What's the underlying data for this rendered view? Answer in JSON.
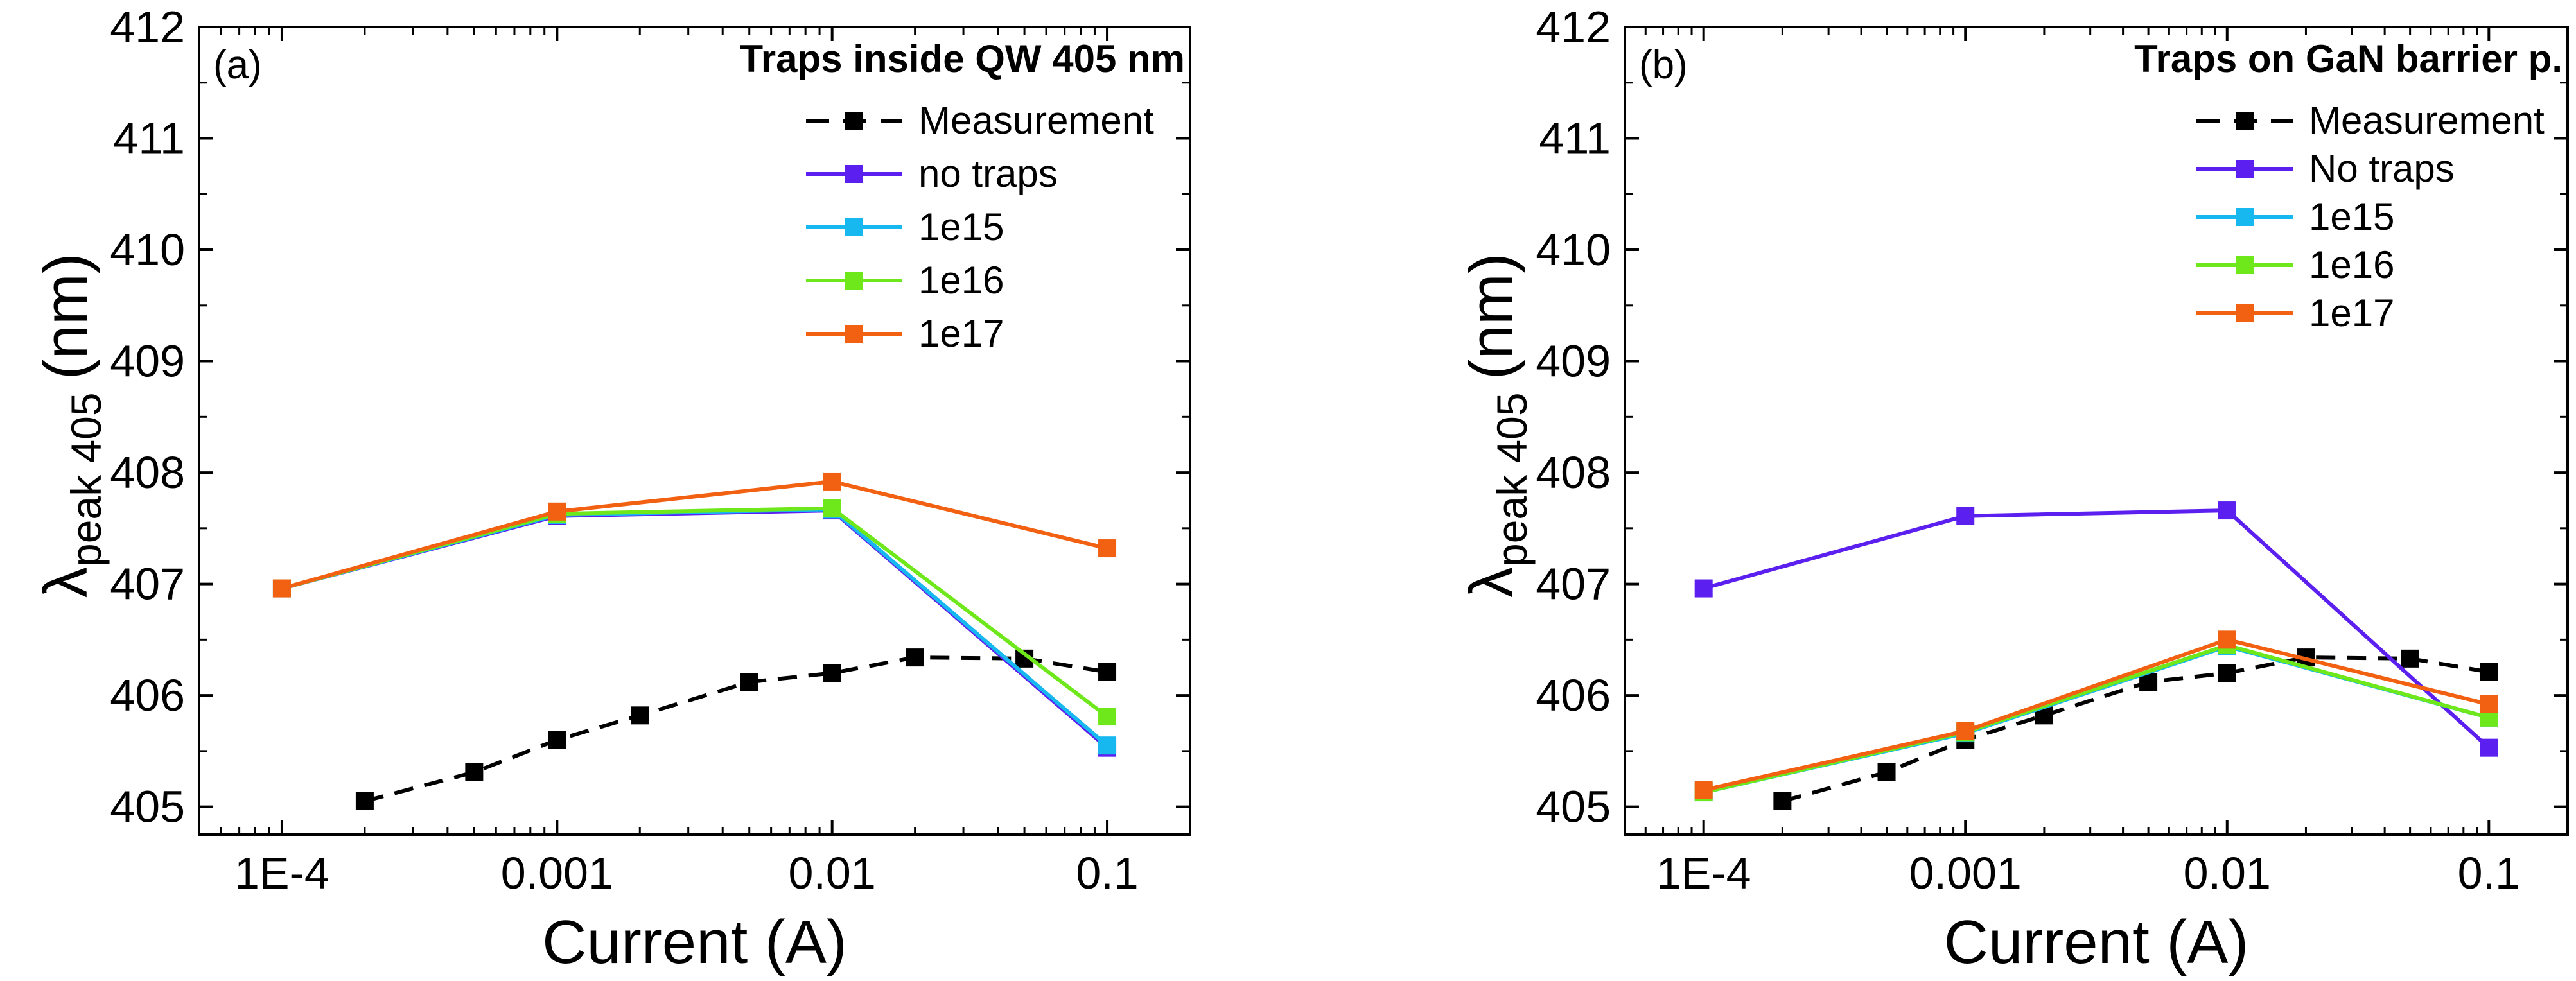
{
  "chart_data": [
    {
      "type": "line",
      "panel_label": "(a)",
      "legend_title": "Traps inside QW 405 nm",
      "xlabel": "Current (A)",
      "ylabel_main": "λ",
      "ylabel_sub": "peak 405",
      "ylabel_unit": "(nm)",
      "xscale": "log",
      "xlim": [
        5e-05,
        0.2
      ],
      "ylim": [
        404.75,
        412
      ],
      "xticks": [
        0.0001,
        0.001,
        0.01,
        0.1
      ],
      "xtick_labels": [
        "1E-4",
        "0.001",
        "0.01",
        "0.1"
      ],
      "yticks": [
        405,
        406,
        407,
        408,
        409,
        410,
        411,
        412
      ],
      "ytick_labels": [
        "405",
        "406",
        "407",
        "408",
        "409",
        "410",
        "411",
        "412"
      ],
      "legend_position": "top-right",
      "series": [
        {
          "name": "Measurement",
          "color": "#000000",
          "dashed": true,
          "x": [
            0.0002,
            0.0005,
            0.001,
            0.002,
            0.005,
            0.01,
            0.02,
            0.05,
            0.1
          ],
          "y": [
            405.05,
            405.31,
            405.6,
            405.82,
            406.12,
            406.2,
            406.34,
            406.33,
            406.21
          ]
        },
        {
          "name": "no traps",
          "color": "#5b1ff0",
          "dashed": false,
          "x": [
            0.0001,
            0.001,
            0.01,
            0.1
          ],
          "y": [
            406.96,
            407.61,
            407.66,
            405.53
          ]
        },
        {
          "name": "1e15",
          "color": "#17b8ef",
          "dashed": false,
          "x": [
            0.0001,
            0.001,
            0.01,
            0.1
          ],
          "y": [
            406.96,
            407.62,
            407.67,
            405.55
          ]
        },
        {
          "name": "1e16",
          "color": "#6ee81a",
          "dashed": false,
          "x": [
            0.0001,
            0.001,
            0.01,
            0.1
          ],
          "y": [
            406.96,
            407.63,
            407.68,
            405.81
          ]
        },
        {
          "name": "1e17",
          "color": "#f26011",
          "dashed": false,
          "x": [
            0.0001,
            0.001,
            0.01,
            0.1
          ],
          "y": [
            406.96,
            407.65,
            407.92,
            407.32
          ]
        }
      ]
    },
    {
      "type": "line",
      "panel_label": "(b)",
      "legend_title": "Traps on GaN barrier p.",
      "xlabel": "Current (A)",
      "ylabel_main": "λ",
      "ylabel_sub": "peak 405",
      "ylabel_unit": "(nm)",
      "xscale": "log",
      "xlim": [
        5e-05,
        0.2
      ],
      "ylim": [
        404.75,
        412
      ],
      "xticks": [
        0.0001,
        0.001,
        0.01,
        0.1
      ],
      "xtick_labels": [
        "1E-4",
        "0.001",
        "0.01",
        "0.1"
      ],
      "yticks": [
        405,
        406,
        407,
        408,
        409,
        410,
        411,
        412
      ],
      "ytick_labels": [
        "405",
        "406",
        "407",
        "408",
        "409",
        "410",
        "411",
        "412"
      ],
      "legend_position": "top-right",
      "series": [
        {
          "name": "Measurement",
          "color": "#000000",
          "dashed": true,
          "x": [
            0.0002,
            0.0005,
            0.001,
            0.002,
            0.005,
            0.01,
            0.02,
            0.05,
            0.1
          ],
          "y": [
            405.05,
            405.31,
            405.6,
            405.82,
            406.12,
            406.2,
            406.34,
            406.33,
            406.21
          ]
        },
        {
          "name": "No traps",
          "color": "#5b1ff0",
          "dashed": false,
          "x": [
            0.0001,
            0.001,
            0.01,
            0.1
          ],
          "y": [
            406.96,
            407.61,
            407.66,
            405.53
          ]
        },
        {
          "name": "1e15",
          "color": "#17b8ef",
          "dashed": false,
          "x": [
            0.0001,
            0.001,
            0.01,
            0.1
          ],
          "y": [
            405.13,
            405.66,
            406.44,
            405.8
          ]
        },
        {
          "name": "1e16",
          "color": "#6ee81a",
          "dashed": false,
          "x": [
            0.0001,
            0.001,
            0.01,
            0.1
          ],
          "y": [
            405.13,
            405.67,
            406.45,
            405.8
          ]
        },
        {
          "name": "1e17",
          "color": "#f26011",
          "dashed": false,
          "x": [
            0.0001,
            0.001,
            0.01,
            0.1
          ],
          "y": [
            405.15,
            405.68,
            406.5,
            405.92
          ]
        }
      ]
    }
  ]
}
